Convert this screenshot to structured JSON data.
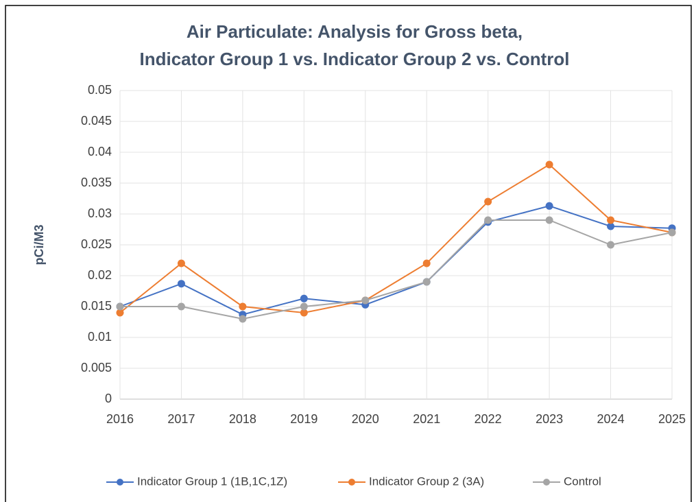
{
  "chart_data": {
    "type": "line",
    "title": [
      "Air Particulate: Analysis for Gross beta,",
      "Indicator Group 1 vs. Indicator Group 2 vs. Control"
    ],
    "y_label": "pCi/M3",
    "categories": [
      "2016",
      "2017",
      "2018",
      "2019",
      "2020",
      "2021",
      "2022",
      "2023",
      "2024",
      "2025"
    ],
    "series": [
      {
        "name": "Indicator Group 1 (1B,1C,1Z)",
        "color": "#4472c4",
        "values": [
          0.015,
          0.0187,
          0.0137,
          0.0163,
          0.0153,
          0.019,
          0.0287,
          0.0313,
          0.028,
          0.0277
        ]
      },
      {
        "name": "Indicator Group 2 (3A)",
        "color": "#ed7d31",
        "values": [
          0.014,
          0.022,
          0.015,
          0.014,
          0.016,
          0.022,
          0.032,
          0.038,
          0.029,
          0.027
        ]
      },
      {
        "name": "Control",
        "color": "#a5a5a5",
        "values": [
          0.015,
          0.015,
          0.013,
          0.015,
          0.016,
          0.019,
          0.029,
          0.029,
          0.025,
          0.027
        ]
      }
    ],
    "ylim": [
      0,
      0.05
    ],
    "yticks": [
      0,
      0.005,
      0.01,
      0.015,
      0.02,
      0.025,
      0.03,
      0.035,
      0.04,
      0.045,
      0.05
    ],
    "grid": true,
    "legend": "bottom"
  }
}
